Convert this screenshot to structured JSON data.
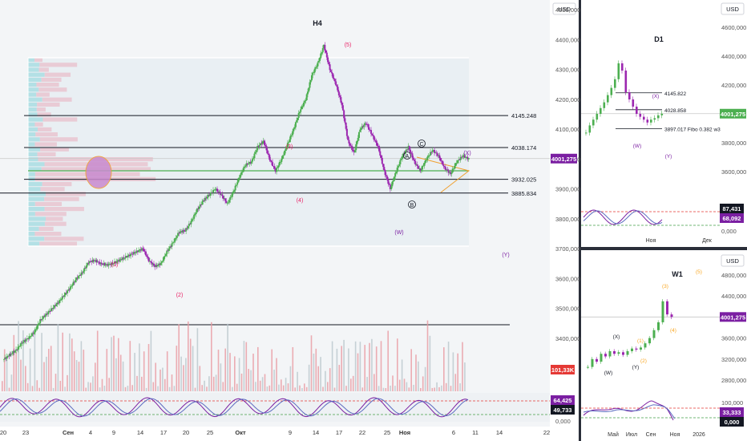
{
  "chart_data": [
    {
      "type": "candlestick",
      "panel": "main",
      "title": "H4",
      "currency": "USD",
      "current_price": "4001,275",
      "ylim": [
        3300,
        4500
      ],
      "y_ticks": [
        "4500,000",
        "4400,000",
        "4300,000",
        "4200,000",
        "4100,000",
        "4000,000",
        "3900,000",
        "3800,000",
        "3700,000",
        "3600,000",
        "3500,000",
        "3400,000"
      ],
      "x_ticks": [
        "20",
        "23",
        "Сен",
        "4",
        "9",
        "14",
        "17",
        "20",
        "25",
        "Окт",
        "9",
        "14",
        "17",
        "22",
        "25",
        "Ноя",
        "6",
        "11",
        "14",
        "22"
      ],
      "levels": [
        {
          "label": "4145.248",
          "value": 4145.248
        },
        {
          "label": "4038.174",
          "value": 4038.174
        },
        {
          "label": "3932.025",
          "value": 3932.025
        },
        {
          "label": "3885.834",
          "value": 3885.834
        }
      ],
      "waves": [
        "(1)",
        "(2)",
        "(3)",
        "(4)",
        "(5)",
        "(W)",
        "(X)",
        "(Y)"
      ],
      "points": [
        "A",
        "B",
        "C"
      ],
      "price_path": [
        3330,
        3345,
        3360,
        3385,
        3400,
        3420,
        3460,
        3480,
        3500,
        3520,
        3545,
        3570,
        3600,
        3620,
        3655,
        3660,
        3650,
        3645,
        3650,
        3660,
        3670,
        3680,
        3690,
        3700,
        3660,
        3640,
        3650,
        3690,
        3720,
        3755,
        3760,
        3790,
        3830,
        3860,
        3880,
        3900,
        3880,
        3850,
        3890,
        3940,
        3980,
        3990,
        4040,
        4060,
        4000,
        3960,
        4000,
        4050,
        4100,
        4160,
        4200,
        4280,
        4320,
        4380,
        4300,
        4250,
        4180,
        4060,
        4020,
        4100,
        4120,
        4080,
        4040,
        3960,
        3900,
        3960,
        4010,
        4040,
        3990,
        3960,
        4000,
        4030,
        4010,
        3970,
        3950,
        3990,
        4010,
        4001
      ],
      "volume_label": "101,33K",
      "oscillator": {
        "values": [
          "64,425",
          "49,733"
        ],
        "ticks": [
          "0,000"
        ]
      }
    },
    {
      "type": "candlestick",
      "panel": "D1",
      "title": "D1",
      "currency": "USD",
      "current_price": "4001,275",
      "y_ticks": [
        "4600,000",
        "4400,000",
        "4200,000",
        "4000,000",
        "3800,000",
        "3600,000"
      ],
      "x_ticks": [
        "Ноя",
        "Дек"
      ],
      "levels": [
        {
          "label": "4145.822",
          "value": 4145.822
        },
        {
          "label": "4028.858",
          "value": 4028.858
        },
        {
          "label": "3897.017 Fibo 0.382 w3",
          "value": 3897.017
        }
      ],
      "waves": [
        "(W)",
        "(X)",
        "(Y)"
      ],
      "price_path": [
        3870,
        3920,
        3960,
        4000,
        4040,
        4080,
        4130,
        4180,
        4240,
        4350,
        4300,
        4150,
        4100,
        4050,
        4000,
        3980,
        3960,
        3940,
        3960,
        3970,
        3990,
        4001
      ],
      "oscillator": {
        "values": [
          "87,431",
          "68,092"
        ],
        "ticks": [
          "0,000"
        ]
      }
    },
    {
      "type": "candlestick",
      "panel": "W1",
      "title": "W1",
      "currency": "USD",
      "current_price": "4001,275",
      "y_ticks": [
        "4800,000",
        "4400,000",
        "4000,000",
        "3600,000",
        "3200,000",
        "2800,000"
      ],
      "x_ticks": [
        "Май",
        "Июл",
        "Сен",
        "Ноя",
        "2026"
      ],
      "waves": [
        "(W)",
        "(X)",
        "(Y)",
        "(1)",
        "(2)",
        "(3)",
        "(4)",
        "(5)"
      ],
      "price_path": [
        3050,
        3200,
        3150,
        3300,
        3250,
        3350,
        3300,
        3330,
        3280,
        3350,
        3400,
        3380,
        3420,
        3500,
        3600,
        3750,
        3900,
        4300,
        4050,
        4001
      ],
      "oscillator": {
        "values": [
          "33,333",
          "0,000"
        ],
        "ticks": [
          "100,000",
          "0,000"
        ]
      }
    }
  ]
}
